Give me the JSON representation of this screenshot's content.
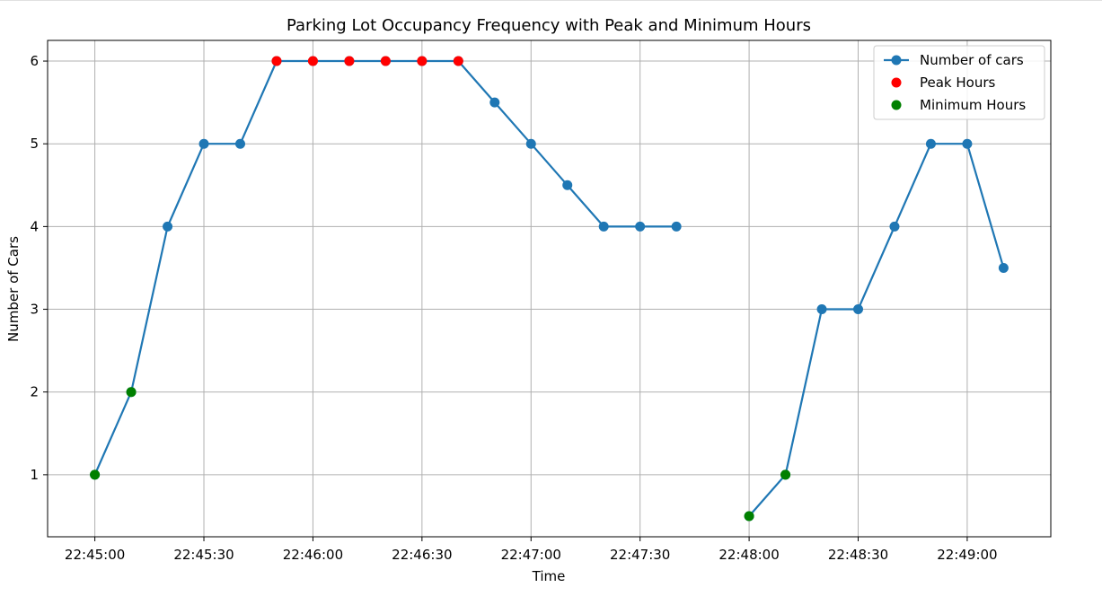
{
  "chart_data": {
    "type": "line",
    "title": "Parking Lot Occupancy Frequency with Peak and Minimum Hours",
    "xlabel": "Time",
    "ylabel": "Number of Cars",
    "x_tick_labels": [
      "22:45:00",
      "22:45:30",
      "22:46:00",
      "22:46:30",
      "22:47:00",
      "22:47:30",
      "22:48:00",
      "22:48:30",
      "22:49:00"
    ],
    "y_tick_labels": [
      "1",
      "2",
      "3",
      "4",
      "5",
      "6"
    ],
    "ylim": [
      0.25,
      6.25
    ],
    "xlim": [
      "22:44:47",
      "22:49:23"
    ],
    "grid": true,
    "legend_position": "top-right",
    "series": [
      {
        "name": "Number of cars",
        "color": "#1f77b4",
        "style": "line-with-markers",
        "segments": [
          [
            {
              "x": "22:45:00",
              "y": 1
            },
            {
              "x": "22:45:10",
              "y": 2
            },
            {
              "x": "22:45:20",
              "y": 4
            },
            {
              "x": "22:45:30",
              "y": 5
            },
            {
              "x": "22:45:40",
              "y": 5
            },
            {
              "x": "22:45:50",
              "y": 6
            },
            {
              "x": "22:46:00",
              "y": 6
            },
            {
              "x": "22:46:10",
              "y": 6
            },
            {
              "x": "22:46:20",
              "y": 6
            },
            {
              "x": "22:46:30",
              "y": 6
            },
            {
              "x": "22:46:40",
              "y": 6
            },
            {
              "x": "22:46:50",
              "y": 5.5
            },
            {
              "x": "22:47:00",
              "y": 5
            },
            {
              "x": "22:47:10",
              "y": 4.5
            },
            {
              "x": "22:47:20",
              "y": 4
            },
            {
              "x": "22:47:30",
              "y": 4
            },
            {
              "x": "22:47:40",
              "y": 4
            }
          ],
          [
            {
              "x": "22:48:00",
              "y": 0.5
            },
            {
              "x": "22:48:10",
              "y": 1
            },
            {
              "x": "22:48:20",
              "y": 3
            },
            {
              "x": "22:48:30",
              "y": 3
            },
            {
              "x": "22:48:40",
              "y": 4
            },
            {
              "x": "22:48:50",
              "y": 5
            },
            {
              "x": "22:49:00",
              "y": 5
            },
            {
              "x": "22:49:10",
              "y": 3.5
            }
          ]
        ]
      },
      {
        "name": "Peak Hours",
        "color": "#ff0000",
        "style": "markers",
        "points": [
          {
            "x": "22:45:50",
            "y": 6
          },
          {
            "x": "22:46:00",
            "y": 6
          },
          {
            "x": "22:46:10",
            "y": 6
          },
          {
            "x": "22:46:20",
            "y": 6
          },
          {
            "x": "22:46:30",
            "y": 6
          },
          {
            "x": "22:46:40",
            "y": 6
          }
        ]
      },
      {
        "name": "Minimum Hours",
        "color": "#008000",
        "style": "markers",
        "points": [
          {
            "x": "22:45:00",
            "y": 1
          },
          {
            "x": "22:45:10",
            "y": 2
          },
          {
            "x": "22:48:00",
            "y": 0.5
          },
          {
            "x": "22:48:10",
            "y": 1
          }
        ]
      }
    ]
  }
}
